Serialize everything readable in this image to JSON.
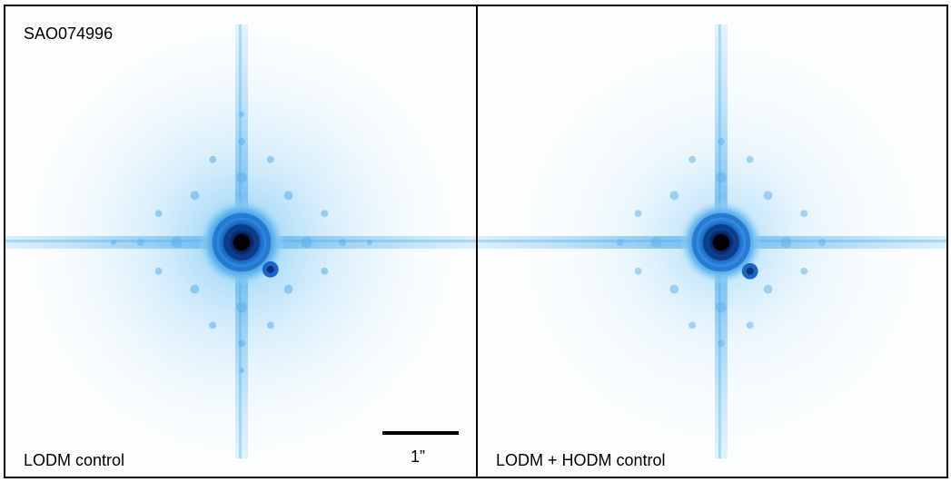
{
  "panels": [
    {
      "target": "SAO074996",
      "mode": "LODM control"
    },
    {
      "mode": "LODM + HODM control"
    }
  ],
  "scale_bar": {
    "label": "1”"
  },
  "colors": {
    "background": "#fbfdfe",
    "halo": "#63baf0",
    "core": "#071f55",
    "spike": "#72c0f0",
    "border": "#000000"
  }
}
